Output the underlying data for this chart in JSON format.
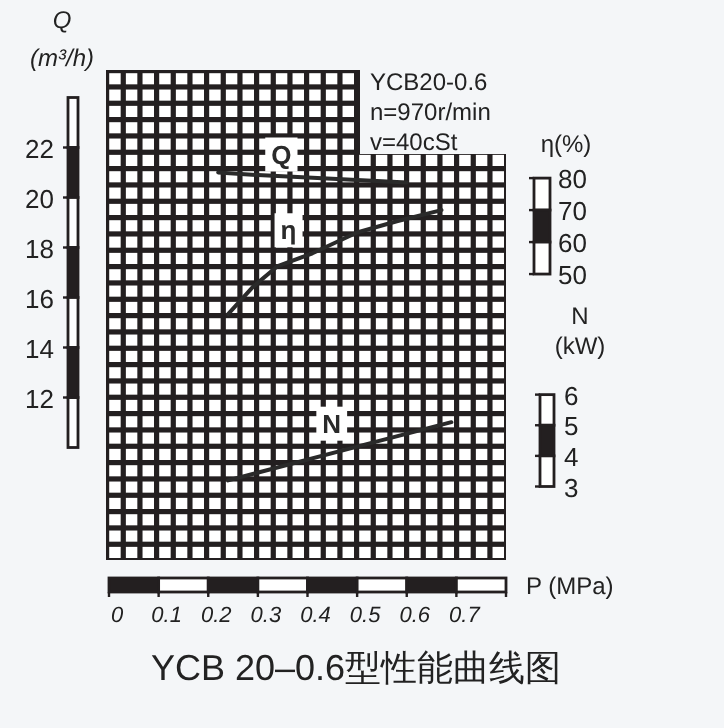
{
  "chart_data": {
    "type": "line",
    "title": "YCB 20–0.6型性能曲线图",
    "xlabel": "P (MPa)",
    "ylabel": "Q (m³/h)",
    "y2label": "η(%)",
    "y3label": "N (kW)",
    "annotations": [
      "YCB20-0.6",
      "n=970r/min",
      "v=40cSt"
    ],
    "xlim": [
      0,
      0.8
    ],
    "xticks": [
      0,
      0.1,
      0.2,
      0.3,
      0.4,
      0.5,
      0.6,
      0.7,
      {
        "value": 0.8,
        "label": null
      }
    ],
    "ylim": [
      5.5,
      25.1
    ],
    "yticks": [
      12,
      14,
      16,
      18,
      20,
      22
    ],
    "y2lim": [
      -39.4,
      113.8
    ],
    "y2ticks": [
      50,
      60,
      70,
      80
    ],
    "y3lim": [
      0.6,
      16.6
    ],
    "y3ticks": [
      3,
      4,
      5,
      6
    ],
    "marker": "none",
    "line_style": "solid",
    "series": [
      {
        "name": "Q",
        "color": "#2a2a2a",
        "axis": "y",
        "x": [
          0.22,
          0.3,
          0.4,
          0.5,
          0.6
        ],
        "values": [
          21.0,
          20.9,
          20.8,
          20.7,
          20.6
        ]
      },
      {
        "name": "η",
        "color": "#2a2a2a",
        "axis": "y2",
        "x": [
          0.24,
          0.29,
          0.34,
          0.41,
          0.5,
          0.58,
          0.67
        ],
        "values": [
          37.5,
          46,
          52.5,
          56.5,
          63,
          66.5,
          70
        ]
      },
      {
        "name": "N",
        "color": "#2a2a2a",
        "axis": "y3",
        "x": [
          0.24,
          0.5,
          0.69
        ],
        "values": [
          3.2,
          4.3,
          5.1
        ]
      }
    ]
  }
}
